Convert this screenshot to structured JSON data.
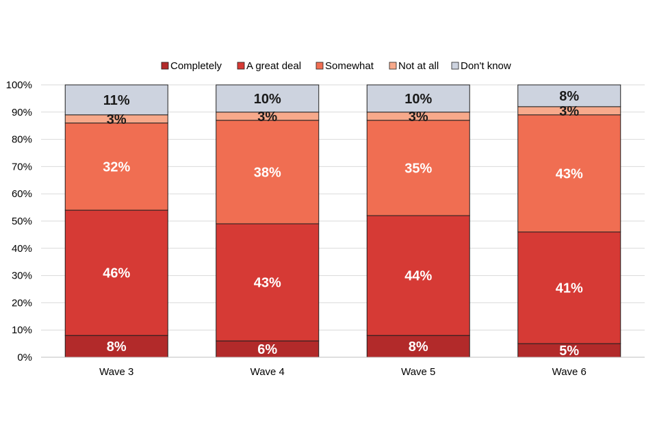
{
  "chart_data": {
    "type": "bar",
    "stacked": true,
    "categories": [
      "Wave 3",
      "Wave 4",
      "Wave 5",
      "Wave 6"
    ],
    "series": [
      {
        "name": "Completely",
        "color": "#b22a2a",
        "values": [
          8,
          6,
          8,
          5
        ],
        "labels": [
          "8%",
          "6%",
          "8%",
          "5%"
        ],
        "label_color": "#ffffff"
      },
      {
        "name": "A great deal",
        "color": "#d63a35",
        "values": [
          46,
          43,
          44,
          41
        ],
        "labels": [
          "46%",
          "43%",
          "44%",
          "41%"
        ],
        "label_color": "#ffffff"
      },
      {
        "name": "Somewhat",
        "color": "#f06e52",
        "values": [
          32,
          38,
          35,
          43
        ],
        "labels": [
          "32%",
          "38%",
          "35%",
          "43%"
        ],
        "label_color": "#ffffff"
      },
      {
        "name": "Not at all",
        "color": "#f7a98b",
        "values": [
          3,
          3,
          3,
          3
        ],
        "labels": [
          "3%",
          "3%",
          "3%",
          "3%"
        ],
        "label_color": "#1a1a1a"
      },
      {
        "name": "Don't know",
        "color": "#cdd3df",
        "values": [
          11,
          10,
          10,
          8
        ],
        "labels": [
          "11%",
          "10%",
          "10%",
          "8%"
        ],
        "label_color": "#1a1a1a"
      }
    ],
    "ylim": [
      0,
      100
    ],
    "yticks": [
      "0%",
      "10%",
      "20%",
      "30%",
      "40%",
      "50%",
      "60%",
      "70%",
      "80%",
      "90%",
      "100%"
    ],
    "grid": true,
    "legend_position": "top"
  }
}
